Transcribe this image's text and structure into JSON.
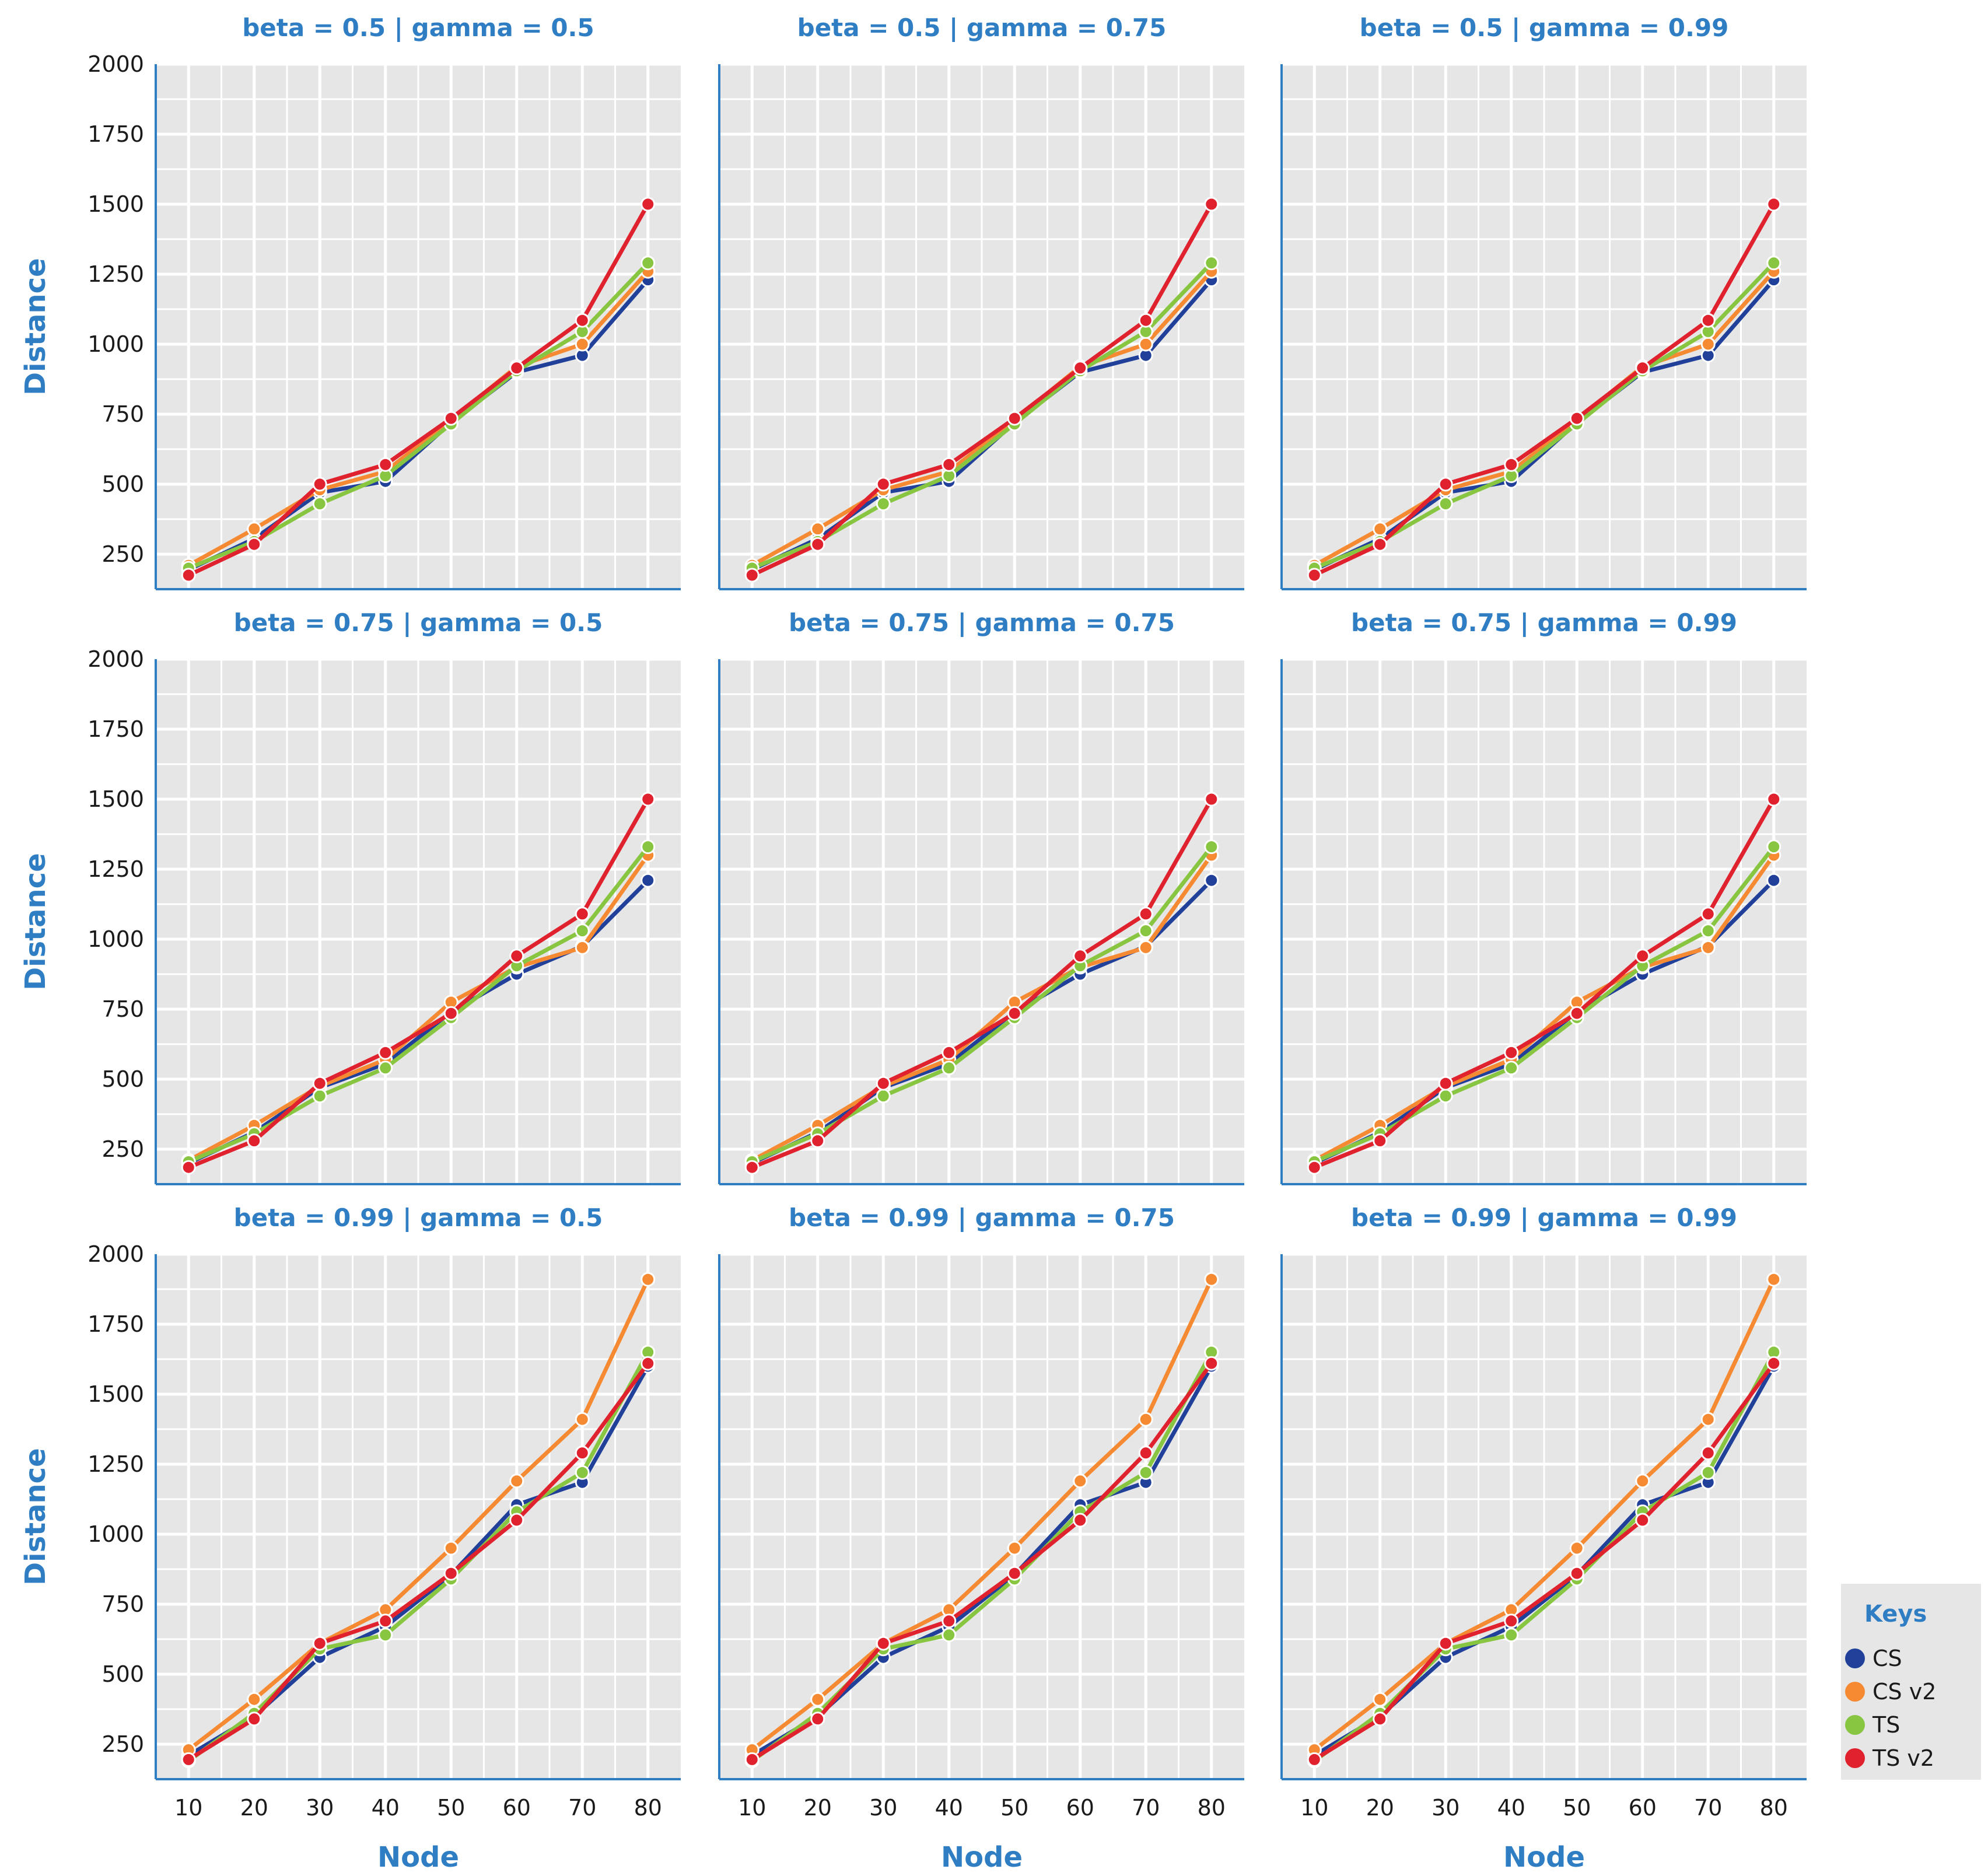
{
  "colors": {
    "CS": "#21409a",
    "CS v2": "#f58a33",
    "TS": "#88c540",
    "TS v2": "#e0212e",
    "panel_bg": "#e6e6e6",
    "grid": "#ffffff",
    "axis": "#2f7ec4",
    "title": "#2f7ec4"
  },
  "legend": {
    "title": "Keys",
    "items": [
      "CS",
      "CS v2",
      "TS",
      "TS v2"
    ]
  },
  "chart_data": [
    {
      "type": "line",
      "title": "beta = 0.5 | gamma = 0.5",
      "xlabel": "Node",
      "ylabel": "Distance",
      "x": [
        10,
        20,
        30,
        40,
        50,
        60,
        70,
        80
      ],
      "ylim": [
        125,
        2000
      ],
      "yticks": [
        250,
        500,
        750,
        1000,
        1250,
        1500,
        1750,
        2000
      ],
      "series": [
        {
          "name": "CS",
          "values": [
            195,
            305,
            470,
            510,
            720,
            900,
            960,
            1230
          ]
        },
        {
          "name": "CS v2",
          "values": [
            210,
            340,
            480,
            545,
            730,
            920,
            1000,
            1260
          ]
        },
        {
          "name": "TS",
          "values": [
            200,
            295,
            430,
            530,
            715,
            905,
            1045,
            1290
          ]
        },
        {
          "name": "TS v2",
          "values": [
            175,
            285,
            500,
            570,
            735,
            915,
            1085,
            1500
          ]
        }
      ]
    },
    {
      "type": "line",
      "title": "beta = 0.5 | gamma = 0.75",
      "xlabel": "Node",
      "ylabel": "Distance",
      "x": [
        10,
        20,
        30,
        40,
        50,
        60,
        70,
        80
      ],
      "ylim": [
        125,
        2000
      ],
      "yticks": [
        250,
        500,
        750,
        1000,
        1250,
        1500,
        1750,
        2000
      ],
      "series": [
        {
          "name": "CS",
          "values": [
            195,
            305,
            470,
            510,
            720,
            900,
            960,
            1230
          ]
        },
        {
          "name": "CS v2",
          "values": [
            210,
            340,
            480,
            545,
            730,
            920,
            1000,
            1260
          ]
        },
        {
          "name": "TS",
          "values": [
            200,
            295,
            430,
            530,
            715,
            905,
            1045,
            1290
          ]
        },
        {
          "name": "TS v2",
          "values": [
            175,
            285,
            500,
            570,
            735,
            915,
            1085,
            1500
          ]
        }
      ]
    },
    {
      "type": "line",
      "title": "beta = 0.5 | gamma = 0.99",
      "xlabel": "Node",
      "ylabel": "Distance",
      "x": [
        10,
        20,
        30,
        40,
        50,
        60,
        70,
        80
      ],
      "ylim": [
        125,
        2000
      ],
      "yticks": [
        250,
        500,
        750,
        1000,
        1250,
        1500,
        1750,
        2000
      ],
      "series": [
        {
          "name": "CS",
          "values": [
            195,
            305,
            470,
            510,
            720,
            900,
            960,
            1230
          ]
        },
        {
          "name": "CS v2",
          "values": [
            210,
            340,
            480,
            545,
            730,
            920,
            1000,
            1260
          ]
        },
        {
          "name": "TS",
          "values": [
            200,
            295,
            430,
            530,
            715,
            905,
            1045,
            1290
          ]
        },
        {
          "name": "TS v2",
          "values": [
            175,
            285,
            500,
            570,
            735,
            915,
            1085,
            1500
          ]
        }
      ]
    },
    {
      "type": "line",
      "title": "beta = 0.75 | gamma = 0.5",
      "xlabel": "Node",
      "ylabel": "Distance",
      "x": [
        10,
        20,
        30,
        40,
        50,
        60,
        70,
        80
      ],
      "ylim": [
        125,
        2000
      ],
      "yticks": [
        250,
        500,
        750,
        1000,
        1250,
        1500,
        1750,
        2000
      ],
      "series": [
        {
          "name": "CS",
          "values": [
            200,
            310,
            470,
            555,
            740,
            875,
            975,
            1210
          ]
        },
        {
          "name": "CS v2",
          "values": [
            210,
            335,
            475,
            570,
            775,
            900,
            970,
            1300
          ]
        },
        {
          "name": "TS",
          "values": [
            205,
            305,
            440,
            540,
            720,
            905,
            1030,
            1330
          ]
        },
        {
          "name": "TS v2",
          "values": [
            185,
            280,
            485,
            595,
            735,
            940,
            1090,
            1500
          ]
        }
      ]
    },
    {
      "type": "line",
      "title": "beta = 0.75 | gamma = 0.75",
      "xlabel": "Node",
      "ylabel": "Distance",
      "x": [
        10,
        20,
        30,
        40,
        50,
        60,
        70,
        80
      ],
      "ylim": [
        125,
        2000
      ],
      "yticks": [
        250,
        500,
        750,
        1000,
        1250,
        1500,
        1750,
        2000
      ],
      "series": [
        {
          "name": "CS",
          "values": [
            200,
            310,
            470,
            555,
            740,
            875,
            975,
            1210
          ]
        },
        {
          "name": "CS v2",
          "values": [
            210,
            335,
            475,
            570,
            775,
            900,
            970,
            1300
          ]
        },
        {
          "name": "TS",
          "values": [
            205,
            305,
            440,
            540,
            720,
            905,
            1030,
            1330
          ]
        },
        {
          "name": "TS v2",
          "values": [
            185,
            280,
            485,
            595,
            735,
            940,
            1090,
            1500
          ]
        }
      ]
    },
    {
      "type": "line",
      "title": "beta = 0.75 | gamma = 0.99",
      "xlabel": "Node",
      "ylabel": "Distance",
      "x": [
        10,
        20,
        30,
        40,
        50,
        60,
        70,
        80
      ],
      "ylim": [
        125,
        2000
      ],
      "yticks": [
        250,
        500,
        750,
        1000,
        1250,
        1500,
        1750,
        2000
      ],
      "series": [
        {
          "name": "CS",
          "values": [
            200,
            310,
            470,
            555,
            740,
            875,
            975,
            1210
          ]
        },
        {
          "name": "CS v2",
          "values": [
            210,
            335,
            475,
            570,
            775,
            900,
            970,
            1300
          ]
        },
        {
          "name": "TS",
          "values": [
            205,
            305,
            440,
            540,
            720,
            905,
            1030,
            1330
          ]
        },
        {
          "name": "TS v2",
          "values": [
            185,
            280,
            485,
            595,
            735,
            940,
            1090,
            1500
          ]
        }
      ]
    },
    {
      "type": "line",
      "title": "beta = 0.99 | gamma = 0.5",
      "xlabel": "Node",
      "ylabel": "Distance",
      "x": [
        10,
        20,
        30,
        40,
        50,
        60,
        70,
        80
      ],
      "ylim": [
        125,
        2000
      ],
      "yticks": [
        250,
        500,
        750,
        1000,
        1250,
        1500,
        1750,
        2000
      ],
      "series": [
        {
          "name": "CS",
          "values": [
            210,
            350,
            560,
            670,
            855,
            1105,
            1185,
            1600
          ]
        },
        {
          "name": "CS v2",
          "values": [
            230,
            410,
            610,
            730,
            950,
            1190,
            1410,
            1910
          ]
        },
        {
          "name": "TS",
          "values": [
            190,
            360,
            590,
            640,
            840,
            1080,
            1220,
            1650
          ]
        },
        {
          "name": "TS v2",
          "values": [
            195,
            340,
            610,
            690,
            860,
            1050,
            1290,
            1610
          ]
        }
      ]
    },
    {
      "type": "line",
      "title": "beta = 0.99 | gamma = 0.75",
      "xlabel": "Node",
      "ylabel": "Distance",
      "x": [
        10,
        20,
        30,
        40,
        50,
        60,
        70,
        80
      ],
      "ylim": [
        125,
        2000
      ],
      "yticks": [
        250,
        500,
        750,
        1000,
        1250,
        1500,
        1750,
        2000
      ],
      "series": [
        {
          "name": "CS",
          "values": [
            210,
            350,
            560,
            670,
            855,
            1105,
            1185,
            1600
          ]
        },
        {
          "name": "CS v2",
          "values": [
            230,
            410,
            610,
            730,
            950,
            1190,
            1410,
            1910
          ]
        },
        {
          "name": "TS",
          "values": [
            190,
            360,
            590,
            640,
            840,
            1080,
            1220,
            1650
          ]
        },
        {
          "name": "TS v2",
          "values": [
            195,
            340,
            610,
            690,
            860,
            1050,
            1290,
            1610
          ]
        }
      ]
    },
    {
      "type": "line",
      "title": "beta = 0.99 | gamma = 0.99",
      "xlabel": "Node",
      "ylabel": "Distance",
      "x": [
        10,
        20,
        30,
        40,
        50,
        60,
        70,
        80
      ],
      "ylim": [
        125,
        2000
      ],
      "yticks": [
        250,
        500,
        750,
        1000,
        1250,
        1500,
        1750,
        2000
      ],
      "series": [
        {
          "name": "CS",
          "values": [
            210,
            350,
            560,
            670,
            855,
            1105,
            1185,
            1600
          ]
        },
        {
          "name": "CS v2",
          "values": [
            230,
            410,
            610,
            730,
            950,
            1190,
            1410,
            1910
          ]
        },
        {
          "name": "TS",
          "values": [
            190,
            360,
            590,
            640,
            840,
            1080,
            1220,
            1650
          ]
        },
        {
          "name": "TS v2",
          "values": [
            195,
            340,
            610,
            690,
            860,
            1050,
            1290,
            1610
          ]
        }
      ]
    }
  ]
}
